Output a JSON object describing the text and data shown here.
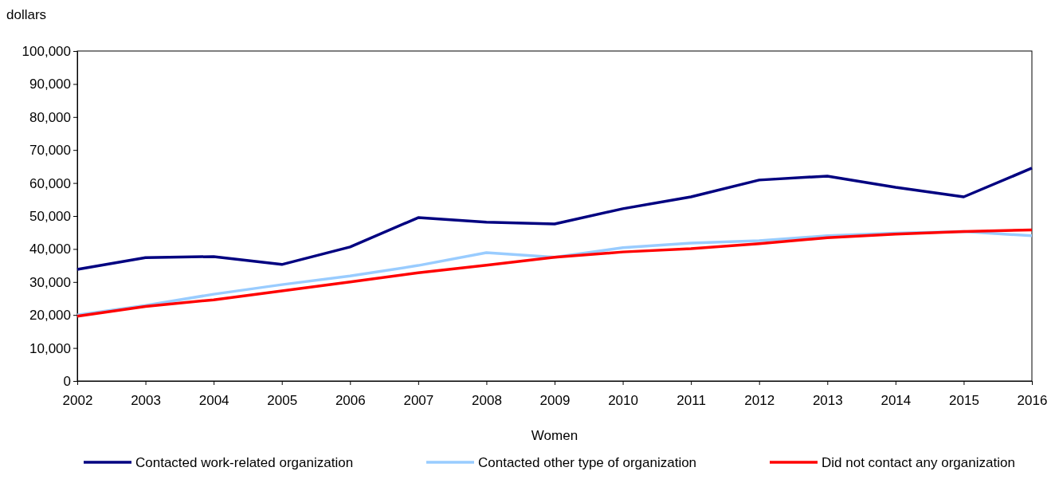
{
  "chart_data": {
    "type": "line",
    "ylabel": "dollars",
    "xlabel": "Women",
    "categories": [
      "2002",
      "2003",
      "2004",
      "2005",
      "2006",
      "2007",
      "2008",
      "2009",
      "2010",
      "2011",
      "2012",
      "2013",
      "2014",
      "2015",
      "2016"
    ],
    "series": [
      {
        "name": "Contacted work-related organization",
        "color": "#000080",
        "values": [
          33800,
          37400,
          37700,
          35300,
          40600,
          49500,
          48100,
          47600,
          52200,
          55800,
          60900,
          62100,
          58700,
          55800,
          64500
        ]
      },
      {
        "name": "Contacted other type of organization",
        "color": "#99ccff",
        "values": [
          20000,
          22900,
          26300,
          29200,
          31800,
          35000,
          38900,
          37500,
          40400,
          41800,
          42500,
          44000,
          44800,
          45300,
          44000
        ]
      },
      {
        "name": "Did not contact any organization",
        "color": "#ff0000",
        "values": [
          19600,
          22600,
          24600,
          27300,
          30000,
          32800,
          35100,
          37500,
          39100,
          40100,
          41600,
          43400,
          44500,
          45300,
          45800
        ]
      }
    ],
    "ylim": [
      0,
      100000
    ],
    "yticks": [
      {
        "value": 0,
        "label": "0"
      },
      {
        "value": 10000,
        "label": "10,000"
      },
      {
        "value": 20000,
        "label": "20,000"
      },
      {
        "value": 30000,
        "label": "30,000"
      },
      {
        "value": 40000,
        "label": "40,000"
      },
      {
        "value": 50000,
        "label": "50,000"
      },
      {
        "value": 60000,
        "label": "60,000"
      },
      {
        "value": 70000,
        "label": "70,000"
      },
      {
        "value": 80000,
        "label": "80,000"
      },
      {
        "value": 90000,
        "label": "90,000"
      },
      {
        "value": 100000,
        "label": "100,000"
      }
    ],
    "grid": false,
    "legend": "bottom",
    "line_style": "solid",
    "marker": "none"
  }
}
